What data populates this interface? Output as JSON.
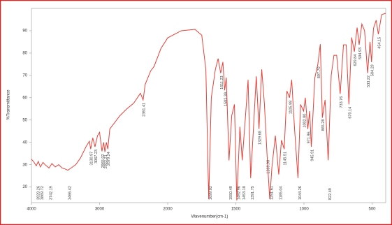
{
  "chart_data": {
    "type": "line",
    "x_label": "Wavenumber(cm-1)",
    "y_label": "%Transmittance",
    "xlim": [
      4000,
      400
    ],
    "ylim": [
      13,
      100
    ],
    "x_break": 2000,
    "x_break_expand": 2,
    "xticks": [
      4000,
      3000,
      2000,
      1500,
      1000,
      500
    ],
    "yticks": [
      20,
      30,
      40,
      50,
      60,
      70,
      80,
      90
    ],
    "color": "#e8403a",
    "x": [
      4000,
      3960,
      3929,
      3900,
      3869,
      3830,
      3800,
      3742,
      3700,
      3650,
      3600,
      3550,
      3500,
      3466,
      3420,
      3350,
      3280,
      3200,
      3150,
      3130,
      3100,
      3067,
      3030,
      3000,
      2965,
      2940,
      2922,
      2900,
      2879,
      2850,
      2800,
      2700,
      2600,
      2500,
      2400,
      2361,
      2330,
      2250,
      2200,
      2100,
      2000,
      1900,
      1800,
      1750,
      1720,
      1699,
      1680,
      1650,
      1630,
      1611,
      1595,
      1582,
      1570,
      1550,
      1530,
      1510,
      1493,
      1470,
      1453,
      1430,
      1410,
      1391,
      1370,
      1350,
      1330,
      1310,
      1290,
      1270,
      1251,
      1235,
      1210,
      1185,
      1165,
      1145,
      1125,
      1106,
      1090,
      1070,
      1044,
      1025,
      1003,
      990,
      972,
      958,
      946,
      920,
      898,
      880,
      865,
      845,
      822,
      800,
      780,
      760,
      734,
      710,
      690,
      670,
      650,
      630,
      610,
      595,
      575,
      555,
      533,
      515,
      504,
      490,
      470,
      454,
      430,
      400
    ],
    "values": [
      32.5,
      31,
      29.5,
      31.5,
      29,
      31,
      30,
      28.5,
      30.5,
      29,
      30,
      28.5,
      28,
      27.5,
      28.5,
      30,
      33,
      38,
      40.5,
      37,
      42,
      38,
      43,
      44.5,
      36,
      40,
      35.7,
      40,
      37,
      46,
      48,
      52,
      55,
      57.5,
      62,
      59,
      66,
      72,
      74,
      82,
      86.8,
      90,
      90.6,
      88,
      72.7,
      14.5,
      60,
      72.7,
      77.5,
      71,
      76,
      63.3,
      69,
      31.9,
      52,
      57,
      14,
      47,
      32,
      51,
      68,
      24,
      47,
      69.6,
      46,
      72.7,
      57,
      33.5,
      14.5,
      29,
      43,
      25.6,
      41,
      37,
      63,
      60,
      68,
      47,
      24,
      57,
      54,
      60,
      46,
      54,
      38,
      69,
      75,
      84,
      51,
      59,
      32,
      70,
      79,
      79,
      61.7,
      83.7,
      83.7,
      57,
      87,
      80.6,
      91.4,
      83.7,
      93,
      90,
      71,
      85,
      75.9,
      91,
      94.7,
      88.4,
      97.2,
      97.8
    ],
    "peaks": [
      3929.26,
      3869.72,
      3742.19,
      3466.42,
      3130.97,
      3067.23,
      2965.02,
      2922.21,
      2879.24,
      2361.41,
      {
        "value": 1699.02,
        "label": "1699.02"
      },
      1611.23,
      1582.39,
      1550.49,
      1492.96,
      {
        "value": 1453.1,
        "label": "1453.10"
      },
      1391.75,
      1329.68,
      {
        "value": 1269.9,
        "label": "1269.90"
      },
      1251.61,
      1185.04,
      1145.51,
      1105.98,
      1044.26,
      {
        "value": 1002.8,
        "label": "1002.80"
      },
      971.96,
      945.91,
      {
        "value": 897.7,
        "label": "897.70"
      },
      865.28,
      822.49,
      733.76,
      670.14,
      629.84,
      594.93,
      533.22,
      504.29,
      454.15
    ]
  }
}
